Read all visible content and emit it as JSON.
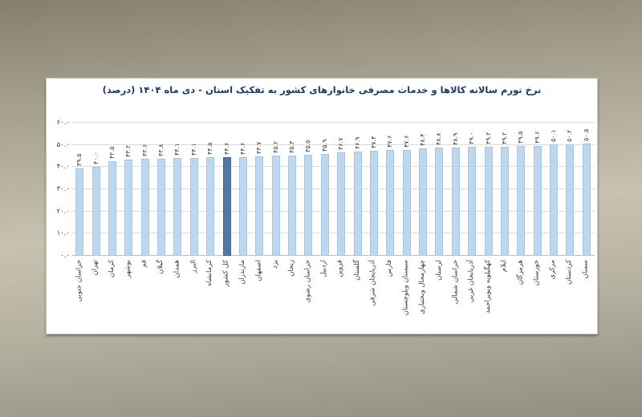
{
  "page": {
    "background_color_top": "#867f6d",
    "background_color_middle": "#c7c2b0",
    "background_color_bottom": "#908e80",
    "panel_background": "#ffffff",
    "title_color": "#1f3864"
  },
  "chart_data": {
    "type": "bar",
    "title": "نرخ تورم سالانه کالاها و خدمات مصرفی خانوارهای کشور به تفکیک استان - دی ماه ۱۴۰۴ (درصد)",
    "order": "left-to-right-ascending",
    "categories": [
      "خراسان جنوبی",
      "تهران",
      "کرمان",
      "بوشهر",
      "قم",
      "گیلان",
      "همدان",
      "البرز",
      "کرمانشاه",
      "کل کشور",
      "مازندران",
      "اصفهان",
      "یزد",
      "زنجان",
      "خراسان رضوی",
      "اردبیل",
      "قزوین",
      "گلستان",
      "آذربایجان شرقی",
      "فارس",
      "سیستان وبلوچستان",
      "چهارمحال وبختیاری",
      "لرستان",
      "خراسان شمالی",
      "آذربایجان غربی",
      "کهگیلویه وبویراحمد",
      "ایلام",
      "هرمزگان",
      "خوزستان",
      "مرکزی",
      "کردستان",
      "سمنان"
    ],
    "values": [
      39.5,
      40.0,
      42.5,
      43.2,
      43.6,
      43.8,
      44.1,
      44.1,
      44.5,
      44.6,
      44.6,
      44.7,
      45.2,
      45.3,
      45.5,
      45.9,
      46.7,
      46.9,
      47.4,
      47.6,
      47.6,
      48.4,
      48.8,
      48.9,
      49.0,
      49.2,
      49.2,
      49.5,
      49.6,
      50.1,
      50.2,
      50.5
    ],
    "value_labels": [
      "۳۹.۵",
      "۴۰.۰",
      "۴۲.۵",
      "۴۳.۲",
      "۴۳.۶",
      "۴۳.۸",
      "۴۴.۱",
      "۴۴.۱",
      "۴۴.۵",
      "۴۴.۶",
      "۴۴.۶",
      "۴۴.۷",
      "۴۵.۲",
      "۴۵.۳",
      "۴۵.۵",
      "۴۵.۹",
      "۴۶.۷",
      "۴۶.۹",
      "۴۷.۴",
      "۴۷.۶",
      "۴۷.۶",
      "۴۸.۴",
      "۴۸.۸",
      "۴۸.۹",
      "۴۹.۰",
      "۴۹.۲",
      "۴۹.۲",
      "۴۹.۵",
      "۴۹.۶",
      "۵۰.۱",
      "۵۰.۲",
      "۵۰.۵"
    ],
    "highlight_category": "کل کشور",
    "highlight_index": 9,
    "xlabel": "",
    "ylabel": "",
    "ylim": [
      0,
      60
    ],
    "yticks": [
      0,
      10,
      20,
      30,
      40,
      50,
      60
    ],
    "ytick_labels": [
      "۰.۰",
      "۱۰.۰",
      "۲۰.۰",
      "۳۰.۰",
      "۴۰.۰",
      "۵۰.۰",
      "۶۰.۰"
    ],
    "grid": true,
    "legend": "none",
    "bar_color": "#bdd7ee",
    "bar_border_color": "#a9c7e2",
    "highlight_color": "#54789f",
    "highlight_border_color": "#41658b",
    "gridline_color": "#dcdcdc",
    "axis_line_color": "#bdbdbd",
    "text_color": "#3a3a3a"
  }
}
